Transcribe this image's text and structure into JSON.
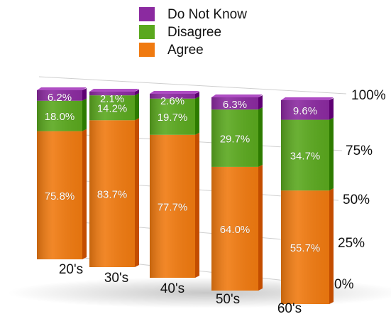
{
  "chart_data": {
    "type": "bar",
    "stacked": true,
    "categories": [
      "20's",
      "30's",
      "40's",
      "50's",
      "60's"
    ],
    "series": [
      {
        "name": "Agree",
        "color": "#f07a10",
        "values": [
          75.8,
          83.7,
          77.7,
          64.0,
          55.7
        ],
        "labels": [
          "75.8%",
          "83.7%",
          "77.7%",
          "64.0%",
          "55.7%"
        ]
      },
      {
        "name": "Disagree",
        "color": "#5aa81e",
        "values": [
          18.0,
          14.2,
          19.7,
          29.7,
          34.7
        ],
        "labels": [
          "18.0%",
          "14.2%",
          "19.7%",
          "29.7%",
          "34.7%"
        ]
      },
      {
        "name": "Do Not Know",
        "color": "#8b2aa0",
        "values": [
          6.2,
          2.1,
          2.6,
          6.3,
          9.6
        ],
        "labels": [
          "6.2%",
          "2.1%",
          "2.6%",
          "6.3%",
          "9.6%"
        ]
      }
    ],
    "legend_order": [
      "Do Not Know",
      "Disagree",
      "Agree"
    ],
    "legend_position": "top",
    "y_ticks": [
      "0%",
      "25%",
      "50%",
      "75%",
      "100%"
    ],
    "y_axis_position": "right",
    "ylim": [
      0,
      100
    ],
    "grid": true,
    "perspective_3d": true
  }
}
